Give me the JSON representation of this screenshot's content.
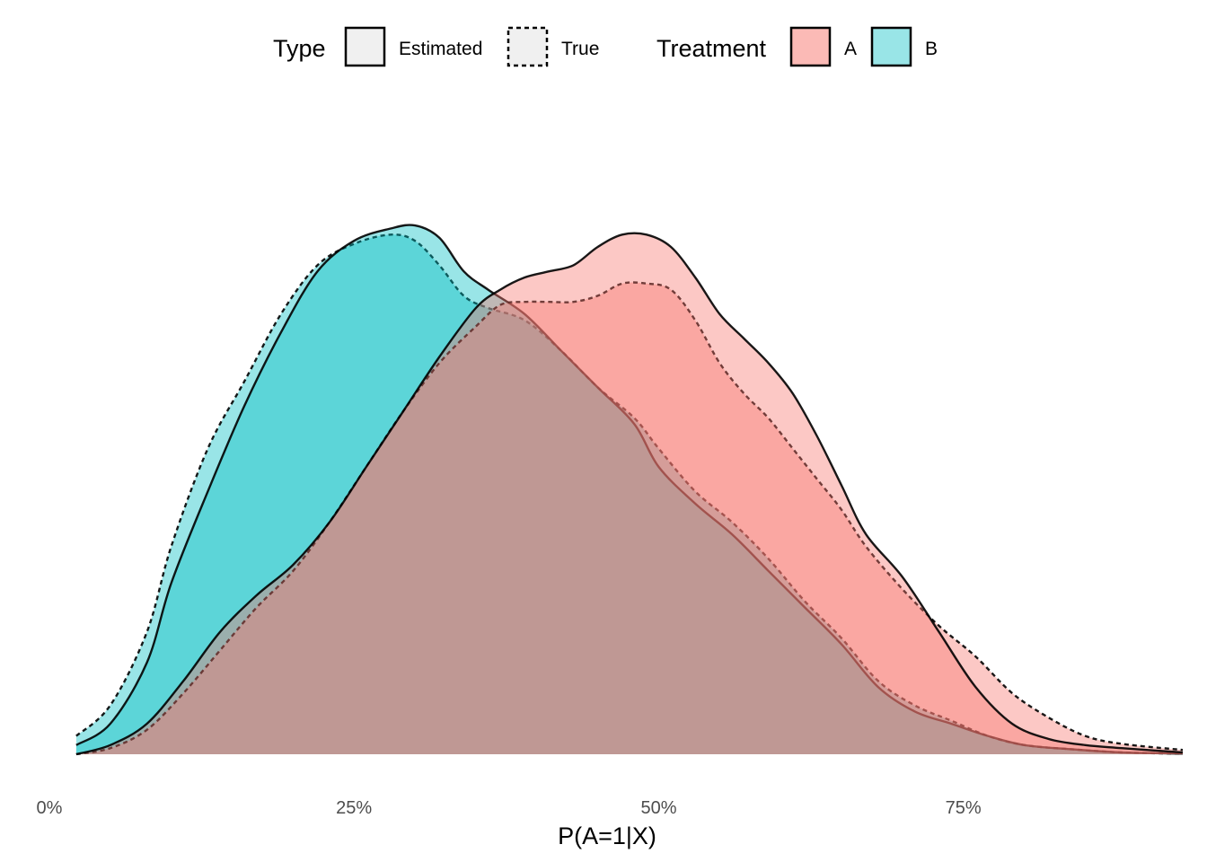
{
  "chart_data": {
    "type": "area",
    "title": "",
    "xlabel": "P(A=1|X)",
    "ylabel": "",
    "xlim": [
      0,
      0.93
    ],
    "ylim": [
      0,
      1.04
    ],
    "grid": false,
    "x_ticks": [
      {
        "value": 0.0,
        "label": "0%"
      },
      {
        "value": 0.25,
        "label": "25%"
      },
      {
        "value": 0.5,
        "label": "50%"
      },
      {
        "value": 0.75,
        "label": "75%"
      }
    ],
    "legend": {
      "placement": "top",
      "groups": [
        {
          "title": "Type",
          "entries": [
            {
              "label": "Estimated",
              "line": "solid"
            },
            {
              "label": "True",
              "line": "dashed"
            }
          ]
        },
        {
          "title": "Treatment",
          "entries": [
            {
              "label": "A",
              "color": "#F8766D"
            },
            {
              "label": "B",
              "color": "#00BFC4"
            }
          ]
        }
      ]
    },
    "series": [
      {
        "treatment": "B",
        "type": "True",
        "color": "#00BFC4",
        "line": "dashed",
        "points": [
          [
            0.022,
            0.03
          ],
          [
            0.05,
            0.08
          ],
          [
            0.08,
            0.2
          ],
          [
            0.1,
            0.34
          ],
          [
            0.13,
            0.5
          ],
          [
            0.16,
            0.61
          ],
          [
            0.19,
            0.72
          ],
          [
            0.22,
            0.8
          ],
          [
            0.25,
            0.835
          ],
          [
            0.28,
            0.85
          ],
          [
            0.3,
            0.84
          ],
          [
            0.32,
            0.8
          ],
          [
            0.34,
            0.75
          ],
          [
            0.36,
            0.73
          ],
          [
            0.39,
            0.71
          ],
          [
            0.42,
            0.66
          ],
          [
            0.45,
            0.6
          ],
          [
            0.48,
            0.55
          ],
          [
            0.5,
            0.5
          ],
          [
            0.53,
            0.43
          ],
          [
            0.56,
            0.38
          ],
          [
            0.59,
            0.32
          ],
          [
            0.62,
            0.25
          ],
          [
            0.65,
            0.19
          ],
          [
            0.68,
            0.12
          ],
          [
            0.71,
            0.08
          ],
          [
            0.74,
            0.055
          ],
          [
            0.77,
            0.03
          ],
          [
            0.8,
            0.015
          ],
          [
            0.84,
            0.008
          ],
          [
            0.88,
            0.003
          ],
          [
            0.93,
            0.001
          ]
        ]
      },
      {
        "treatment": "B",
        "type": "Estimated",
        "color": "#00BFC4",
        "line": "solid",
        "points": [
          [
            0.022,
            0.015
          ],
          [
            0.05,
            0.05
          ],
          [
            0.08,
            0.15
          ],
          [
            0.1,
            0.28
          ],
          [
            0.13,
            0.43
          ],
          [
            0.16,
            0.57
          ],
          [
            0.19,
            0.69
          ],
          [
            0.22,
            0.79
          ],
          [
            0.25,
            0.84
          ],
          [
            0.28,
            0.86
          ],
          [
            0.3,
            0.865
          ],
          [
            0.32,
            0.845
          ],
          [
            0.34,
            0.79
          ],
          [
            0.36,
            0.76
          ],
          [
            0.39,
            0.72
          ],
          [
            0.42,
            0.66
          ],
          [
            0.45,
            0.6
          ],
          [
            0.48,
            0.54
          ],
          [
            0.5,
            0.47
          ],
          [
            0.53,
            0.41
          ],
          [
            0.56,
            0.36
          ],
          [
            0.59,
            0.3
          ],
          [
            0.62,
            0.24
          ],
          [
            0.65,
            0.18
          ],
          [
            0.68,
            0.11
          ],
          [
            0.71,
            0.07
          ],
          [
            0.74,
            0.05
          ],
          [
            0.77,
            0.03
          ],
          [
            0.8,
            0.015
          ],
          [
            0.84,
            0.008
          ],
          [
            0.88,
            0.003
          ],
          [
            0.93,
            0.001
          ]
        ]
      },
      {
        "treatment": "A",
        "type": "True",
        "color": "#F8766D",
        "line": "dashed",
        "points": [
          [
            0.022,
            0.0
          ],
          [
            0.05,
            0.01
          ],
          [
            0.08,
            0.04
          ],
          [
            0.11,
            0.1
          ],
          [
            0.14,
            0.17
          ],
          [
            0.17,
            0.24
          ],
          [
            0.2,
            0.3
          ],
          [
            0.23,
            0.38
          ],
          [
            0.26,
            0.47
          ],
          [
            0.29,
            0.56
          ],
          [
            0.32,
            0.64
          ],
          [
            0.35,
            0.7
          ],
          [
            0.37,
            0.735
          ],
          [
            0.39,
            0.74
          ],
          [
            0.41,
            0.74
          ],
          [
            0.43,
            0.74
          ],
          [
            0.45,
            0.75
          ],
          [
            0.47,
            0.77
          ],
          [
            0.49,
            0.77
          ],
          [
            0.51,
            0.76
          ],
          [
            0.53,
            0.71
          ],
          [
            0.55,
            0.64
          ],
          [
            0.57,
            0.59
          ],
          [
            0.59,
            0.55
          ],
          [
            0.61,
            0.5
          ],
          [
            0.63,
            0.45
          ],
          [
            0.65,
            0.4
          ],
          [
            0.67,
            0.34
          ],
          [
            0.7,
            0.27
          ],
          [
            0.73,
            0.21
          ],
          [
            0.76,
            0.16
          ],
          [
            0.79,
            0.1
          ],
          [
            0.82,
            0.06
          ],
          [
            0.85,
            0.03
          ],
          [
            0.88,
            0.017
          ],
          [
            0.93,
            0.007
          ]
        ]
      },
      {
        "treatment": "A",
        "type": "Estimated",
        "color": "#F8766D",
        "line": "solid",
        "points": [
          [
            0.022,
            0.0
          ],
          [
            0.05,
            0.015
          ],
          [
            0.08,
            0.05
          ],
          [
            0.11,
            0.12
          ],
          [
            0.14,
            0.2
          ],
          [
            0.17,
            0.26
          ],
          [
            0.2,
            0.31
          ],
          [
            0.23,
            0.38
          ],
          [
            0.26,
            0.47
          ],
          [
            0.29,
            0.56
          ],
          [
            0.32,
            0.65
          ],
          [
            0.35,
            0.73
          ],
          [
            0.37,
            0.76
          ],
          [
            0.39,
            0.78
          ],
          [
            0.41,
            0.79
          ],
          [
            0.43,
            0.8
          ],
          [
            0.45,
            0.83
          ],
          [
            0.47,
            0.85
          ],
          [
            0.49,
            0.85
          ],
          [
            0.51,
            0.83
          ],
          [
            0.53,
            0.78
          ],
          [
            0.55,
            0.72
          ],
          [
            0.57,
            0.68
          ],
          [
            0.59,
            0.64
          ],
          [
            0.61,
            0.59
          ],
          [
            0.63,
            0.52
          ],
          [
            0.65,
            0.44
          ],
          [
            0.67,
            0.36
          ],
          [
            0.7,
            0.29
          ],
          [
            0.73,
            0.2
          ],
          [
            0.76,
            0.11
          ],
          [
            0.79,
            0.05
          ],
          [
            0.82,
            0.025
          ],
          [
            0.85,
            0.015
          ],
          [
            0.88,
            0.01
          ],
          [
            0.93,
            0.003
          ]
        ]
      }
    ]
  }
}
